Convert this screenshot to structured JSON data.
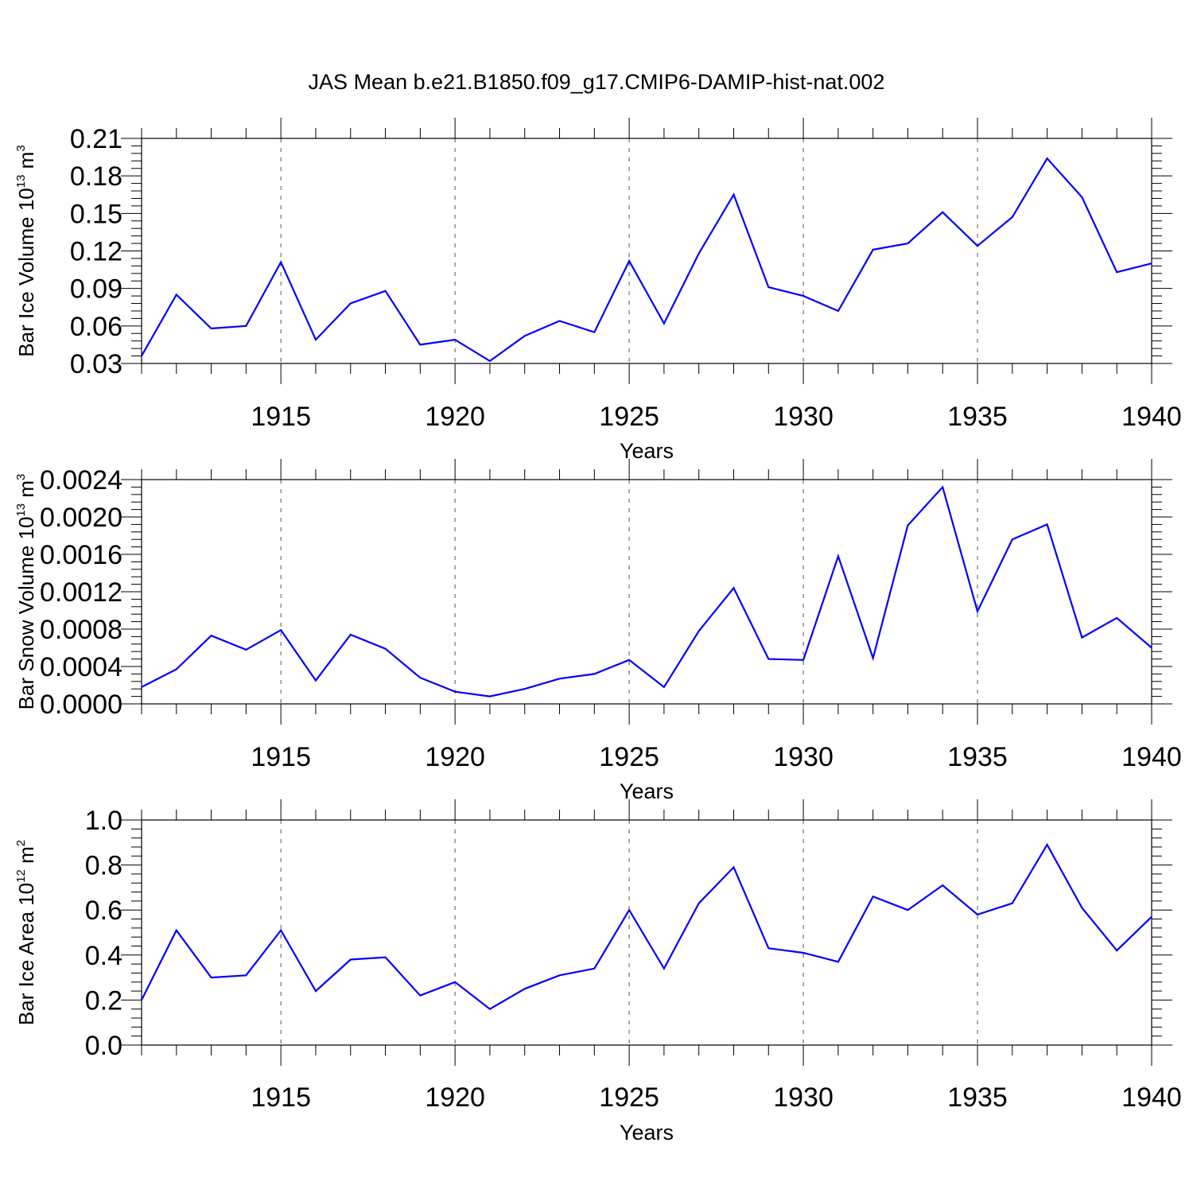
{
  "title": "JAS Mean b.e21.B1850.f09_g17.CMIP6-DAMIP-hist-nat.002",
  "colors": {
    "line": "#0000ff",
    "axis": "#000000",
    "grid": "#555555"
  },
  "chart_data": [
    {
      "type": "line",
      "xlabel": "Years",
      "ylabel": {
        "main": "Bar Ice Volume 10",
        "exp": "13",
        "unit": " m",
        "unit_exp": "3"
      },
      "xlim": [
        1911,
        1940
      ],
      "ylim": [
        0.03,
        0.21
      ],
      "xticks": [
        1915,
        1920,
        1925,
        1930,
        1935,
        1940
      ],
      "xtick_labels": [
        "1915",
        "1920",
        "1925",
        "1930",
        "1935",
        "1940"
      ],
      "yticks": [
        0.03,
        0.06,
        0.09,
        0.12,
        0.15,
        0.18,
        0.21
      ],
      "ytick_labels": [
        "0.03",
        "0.06",
        "0.09",
        "0.12",
        "0.15",
        "0.18",
        "0.21"
      ],
      "grid": "vertical dashed at major x ticks",
      "x": [
        1911,
        1912,
        1913,
        1914,
        1915,
        1916,
        1917,
        1918,
        1919,
        1920,
        1921,
        1922,
        1923,
        1924,
        1925,
        1926,
        1927,
        1928,
        1929,
        1930,
        1931,
        1932,
        1933,
        1934,
        1935,
        1936,
        1937,
        1938,
        1939,
        1940
      ],
      "series": [
        {
          "values": [
            0.036,
            0.085,
            0.058,
            0.06,
            0.111,
            0.049,
            0.078,
            0.088,
            0.045,
            0.049,
            0.032,
            0.052,
            0.064,
            0.055,
            0.112,
            0.062,
            0.118,
            0.165,
            0.091,
            0.084,
            0.072,
            0.121,
            0.126,
            0.151,
            0.124,
            0.147,
            0.194,
            0.163,
            0.103,
            0.11
          ]
        }
      ]
    },
    {
      "type": "line",
      "xlabel": "Years",
      "ylabel": {
        "main": "Bar Snow Volume 10",
        "exp": "13",
        "unit": " m",
        "unit_exp": "3"
      },
      "xlim": [
        1911,
        1940
      ],
      "ylim": [
        0.0,
        0.0024
      ],
      "xticks": [
        1915,
        1920,
        1925,
        1930,
        1935,
        1940
      ],
      "xtick_labels": [
        "1915",
        "1920",
        "1925",
        "1930",
        "1935",
        "1940"
      ],
      "yticks": [
        0.0,
        0.0004,
        0.0008,
        0.0012,
        0.0016,
        0.002,
        0.0024
      ],
      "ytick_labels": [
        "0.0000",
        "0.0004",
        "0.0008",
        "0.0012",
        "0.0016",
        "0.0020",
        "0.0024"
      ],
      "grid": "vertical dashed at major x ticks",
      "x": [
        1911,
        1912,
        1913,
        1914,
        1915,
        1916,
        1917,
        1918,
        1919,
        1920,
        1921,
        1922,
        1923,
        1924,
        1925,
        1926,
        1927,
        1928,
        1929,
        1930,
        1931,
        1932,
        1933,
        1934,
        1935,
        1936,
        1937,
        1938,
        1939,
        1940
      ],
      "series": [
        {
          "values": [
            0.00018,
            0.00037,
            0.00073,
            0.00058,
            0.00079,
            0.00025,
            0.00074,
            0.00059,
            0.00028,
            0.00013,
            8e-05,
            0.00016,
            0.00027,
            0.00032,
            0.00047,
            0.00018,
            0.00078,
            0.00124,
            0.00048,
            0.00047,
            0.00158,
            0.00049,
            0.00191,
            0.00232,
            0.00099,
            0.00176,
            0.00192,
            0.00071,
            0.00092,
            0.0006
          ]
        }
      ]
    },
    {
      "type": "line",
      "xlabel": "Years",
      "ylabel": {
        "main": "Bar Ice Area 10",
        "exp": "12",
        "unit": " m",
        "unit_exp": "2"
      },
      "xlim": [
        1911,
        1940
      ],
      "ylim": [
        0.0,
        1.0
      ],
      "xticks": [
        1915,
        1920,
        1925,
        1930,
        1935,
        1940
      ],
      "xtick_labels": [
        "1915",
        "1920",
        "1925",
        "1930",
        "1935",
        "1940"
      ],
      "yticks": [
        0.0,
        0.2,
        0.4,
        0.6,
        0.8,
        1.0
      ],
      "ytick_labels": [
        "0.0",
        "0.2",
        "0.4",
        "0.6",
        "0.8",
        "1.0"
      ],
      "grid": "vertical dashed at major x ticks",
      "x": [
        1911,
        1912,
        1913,
        1914,
        1915,
        1916,
        1917,
        1918,
        1919,
        1920,
        1921,
        1922,
        1923,
        1924,
        1925,
        1926,
        1927,
        1928,
        1929,
        1930,
        1931,
        1932,
        1933,
        1934,
        1935,
        1936,
        1937,
        1938,
        1939,
        1940
      ],
      "series": [
        {
          "values": [
            0.2,
            0.51,
            0.3,
            0.31,
            0.51,
            0.24,
            0.38,
            0.39,
            0.22,
            0.28,
            0.16,
            0.25,
            0.31,
            0.34,
            0.6,
            0.34,
            0.63,
            0.79,
            0.43,
            0.41,
            0.37,
            0.66,
            0.6,
            0.71,
            0.58,
            0.63,
            0.89,
            0.61,
            0.42,
            0.57
          ]
        }
      ]
    }
  ]
}
